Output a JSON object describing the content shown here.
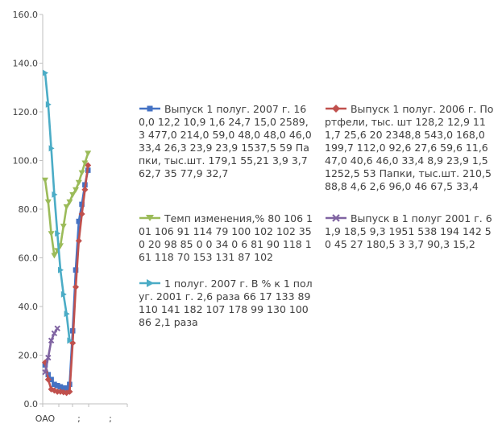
{
  "chart_data": {
    "type": "line",
    "ylim": [
      0,
      160
    ],
    "y_ticks": [
      "0.0",
      "20.0",
      "40.0",
      "60.0",
      "80.0",
      "100.0",
      "120.0",
      "140.0",
      "160.0"
    ],
    "x_tick_labels": [
      "OAO",
      ";",
      ";"
    ],
    "grid": false,
    "legend_position": "right",
    "series": [
      {
        "name": "Выпуск 1 полуг. 2007 г. 160,0 12,2 10,9 1,6 24,7 15,0 2589,3 477,0 214,0 59,0 48,0 48,0 46,0 33,4 26,3 23,9 23,9 1537,5 59 Папки, тыс.шт. 179,1 55,21 3,9 3,7 62,7 35 77,9 32,7",
        "color": "#4472C4",
        "marker": "square",
        "values": [
          16,
          12,
          10,
          8,
          7.5,
          7,
          6.5,
          6.5,
          8,
          30,
          55,
          75,
          82,
          90,
          96
        ]
      },
      {
        "name": "Выпуск 1 полуг. 2006 г. Портфели, тыс. шт 128,2 12,9 11 1,7 25,6 20 2348,8 543,0 168,0 199,7 112,0 92,6 27,6 59,6 11,6 47,0 40,6 46,0 33,4 8,9 23,9 1,5 1252,5 53 Папки, тыс.шт. 210,5 88,8 4,6 2,6 96,0 46 67,5 33,4",
        "color": "#C0504D",
        "marker": "diamond",
        "values": [
          17,
          10,
          6,
          5.5,
          5,
          5,
          4.8,
          4.5,
          5,
          25,
          48,
          67,
          78,
          88,
          98
        ]
      },
      {
        "name": "Темп изменения,% 80 106 101 106 91 114 79 100 102 102 35 0 20 98 85 0 0 34 0 6 81 90 118 161 118 70 153 131 87 102",
        "color": "#9BBB59",
        "marker": "triangle-down",
        "values": [
          92,
          83,
          70,
          61,
          63,
          65,
          73,
          81,
          83,
          86,
          88,
          91,
          95,
          99,
          103
        ]
      },
      {
        "name": "Выпуск в 1 полуг 2001 г. 61,9 18,5 9,3 1951 538 194 142 50 45 27 180,5 3 3,7 90,3 15,2",
        "color": "#8064A2",
        "marker": "x",
        "values": [
          13,
          19,
          26,
          29,
          31
        ]
      },
      {
        "name": "1 полуг. 2007 г. В % к 1 полуг. 2001 г. 2,6 раза 66 17 133 89 110 141 182 107 178 99 130 100 86 2,1 раза",
        "color": "#4BACC6",
        "marker": "triangle-right",
        "values": [
          136,
          123,
          105,
          86,
          70,
          55,
          45,
          37,
          26
        ]
      }
    ]
  }
}
